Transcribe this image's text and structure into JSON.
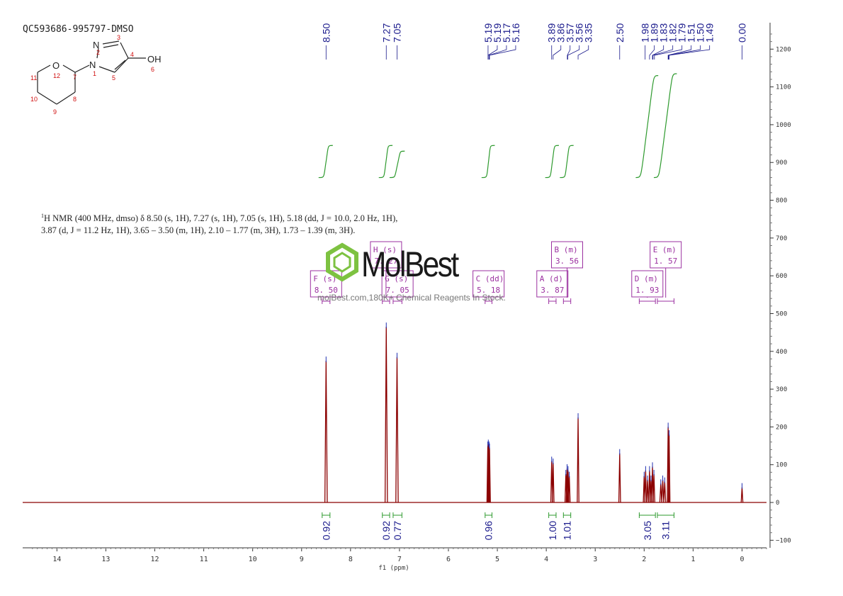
{
  "sample_id": "QC593686-995797-DMSO",
  "structure": {
    "hydroxyl_label": "OH",
    "atom_labels": [
      {
        "sym": "N",
        "num": "2"
      },
      {
        "sym": "N",
        "num": "1"
      },
      {
        "sym": "O",
        "num": "12"
      },
      {
        "sym": "",
        "num": "3"
      },
      {
        "sym": "",
        "num": "4"
      },
      {
        "sym": "",
        "num": "5"
      },
      {
        "sym": "",
        "num": "6"
      },
      {
        "sym": "",
        "num": "7"
      },
      {
        "sym": "",
        "num": "8"
      },
      {
        "sym": "",
        "num": "9"
      },
      {
        "sym": "",
        "num": "10"
      },
      {
        "sym": "",
        "num": "11"
      }
    ]
  },
  "nmr_text": {
    "line1": "H NMR (400 MHz, dmso) δ 8.50 (s, 1H), 7.27 (s, 1H), 7.05 (s, 1H), 5.18 (dd, J = 10.0, 2.0 Hz, 1H),",
    "line1_sup": "1",
    "line2": "3.87 (d, J = 11.2 Hz, 1H), 3.65 – 3.50 (m, 1H), 2.10 – 1.77 (m, 3H), 1.73 – 1.39 (m, 3H)."
  },
  "watermark": {
    "logo": "MolBest",
    "tagline": "molBest.com,180K+ Chemical Reagents In Stock."
  },
  "chart_data": {
    "type": "line",
    "title": "",
    "xlabel": "f1 (ppm)",
    "ylabel": "",
    "xlim": [
      14.7,
      -0.5
    ],
    "ylim": [
      -120,
      1270
    ],
    "x_ticks": [
      14,
      13,
      12,
      11,
      10,
      9,
      8,
      7,
      6,
      5,
      4,
      3,
      2,
      1,
      0
    ],
    "y_ticks": [
      -100,
      0,
      100,
      200,
      300,
      400,
      500,
      600,
      700,
      800,
      900,
      1000,
      1100,
      1200
    ],
    "spectrum_color": "#8b0000",
    "integral_color": "#2e9a2e",
    "annotation_color": "#9b30a0",
    "label_color": "#1a1a8c",
    "peaks": [
      {
        "ppm": 8.5,
        "height": 375,
        "width": 0.012
      },
      {
        "ppm": 7.27,
        "height": 465,
        "width": 0.012
      },
      {
        "ppm": 7.05,
        "height": 385,
        "width": 0.012
      },
      {
        "ppm": 5.195,
        "height": 150,
        "width": 0.006
      },
      {
        "ppm": 5.185,
        "height": 155,
        "width": 0.006
      },
      {
        "ppm": 5.17,
        "height": 150,
        "width": 0.006
      },
      {
        "ppm": 5.16,
        "height": 145,
        "width": 0.006
      },
      {
        "ppm": 3.89,
        "height": 110,
        "width": 0.008
      },
      {
        "ppm": 3.86,
        "height": 105,
        "width": 0.008
      },
      {
        "ppm": 3.6,
        "height": 75,
        "width": 0.008
      },
      {
        "ppm": 3.575,
        "height": 90,
        "width": 0.008
      },
      {
        "ppm": 3.555,
        "height": 85,
        "width": 0.008
      },
      {
        "ppm": 3.53,
        "height": 70,
        "width": 0.008
      },
      {
        "ppm": 3.35,
        "height": 225,
        "width": 0.008
      },
      {
        "ppm": 2.5,
        "height": 130,
        "width": 0.008
      },
      {
        "ppm": 2.0,
        "height": 70,
        "width": 0.008
      },
      {
        "ppm": 1.97,
        "height": 85,
        "width": 0.008
      },
      {
        "ppm": 1.93,
        "height": 60,
        "width": 0.008
      },
      {
        "ppm": 1.89,
        "height": 85,
        "width": 0.008
      },
      {
        "ppm": 1.86,
        "height": 60,
        "width": 0.008
      },
      {
        "ppm": 1.83,
        "height": 95,
        "width": 0.008
      },
      {
        "ppm": 1.8,
        "height": 75,
        "width": 0.008
      },
      {
        "ppm": 1.66,
        "height": 50,
        "width": 0.01
      },
      {
        "ppm": 1.62,
        "height": 60,
        "width": 0.01
      },
      {
        "ppm": 1.58,
        "height": 55,
        "width": 0.01
      },
      {
        "ppm": 1.51,
        "height": 200,
        "width": 0.008
      },
      {
        "ppm": 1.49,
        "height": 180,
        "width": 0.008
      },
      {
        "ppm": 0.0,
        "height": 40,
        "width": 0.006
      }
    ],
    "peak_labels": [
      "8.50",
      "7.27",
      "7.05",
      "5.19",
      "5.19",
      "5.17",
      "5.16",
      "3.89",
      "3.86",
      "3.57",
      "3.56",
      "3.35",
      "2.50",
      "1.98",
      "1.89",
      "1.83",
      "1.82",
      "1.79",
      "1.51",
      "1.50",
      "1.49",
      "0.00"
    ],
    "peak_label_ppm": [
      8.5,
      7.27,
      7.05,
      5.19,
      5.19,
      5.17,
      5.16,
      3.89,
      3.86,
      3.57,
      3.56,
      3.35,
      2.5,
      1.98,
      1.89,
      1.83,
      1.82,
      1.79,
      1.51,
      1.5,
      1.49,
      0.0
    ],
    "integrals": [
      {
        "from": 8.58,
        "to": 8.42,
        "value": "0.92",
        "curve_low": 860,
        "curve_high": 945
      },
      {
        "from": 7.35,
        "to": 7.2,
        "value": "0.92",
        "curve_low": 860,
        "curve_high": 945
      },
      {
        "from": 7.13,
        "to": 6.95,
        "value": "0.77",
        "curve_low": 860,
        "curve_high": 930
      },
      {
        "from": 5.25,
        "to": 5.11,
        "value": "0.96",
        "curve_low": 860,
        "curve_high": 945
      },
      {
        "from": 3.95,
        "to": 3.8,
        "value": "1.00",
        "curve_low": 860,
        "curve_high": 945
      },
      {
        "from": 3.65,
        "to": 3.5,
        "value": "1.01",
        "curve_low": 860,
        "curve_high": 945
      },
      {
        "from": 2.1,
        "to": 1.77,
        "value": "3.05",
        "curve_low": 860,
        "curve_high": 1130
      },
      {
        "from": 1.73,
        "to": 1.39,
        "value": "3.11",
        "curve_low": 860,
        "curve_high": 1135
      }
    ],
    "multiplets": [
      {
        "letter": "F",
        "type": "s",
        "shift": "8.50",
        "range": [
          8.58,
          8.42
        ],
        "level": 0
      },
      {
        "letter": "H",
        "type": "s",
        "shift": "7.27",
        "range": [
          7.35,
          7.2
        ],
        "level": 1
      },
      {
        "letter": "G",
        "type": "s",
        "shift": "7.05",
        "range": [
          7.13,
          6.95
        ],
        "level": 0
      },
      {
        "letter": "C",
        "type": "dd",
        "shift": "5.18",
        "range": [
          5.25,
          5.11
        ],
        "level": 0
      },
      {
        "letter": "A",
        "type": "d",
        "shift": "3.87",
        "range": [
          3.95,
          3.8
        ],
        "level": 0
      },
      {
        "letter": "B",
        "type": "m",
        "shift": "3.56",
        "range": [
          3.65,
          3.5
        ],
        "level": 1
      },
      {
        "letter": "D",
        "type": "m",
        "shift": "1.93",
        "range": [
          2.1,
          1.77
        ],
        "level": 0
      },
      {
        "letter": "E",
        "type": "m",
        "shift": "1.57",
        "range": [
          1.73,
          1.39
        ],
        "level": 1
      }
    ]
  }
}
